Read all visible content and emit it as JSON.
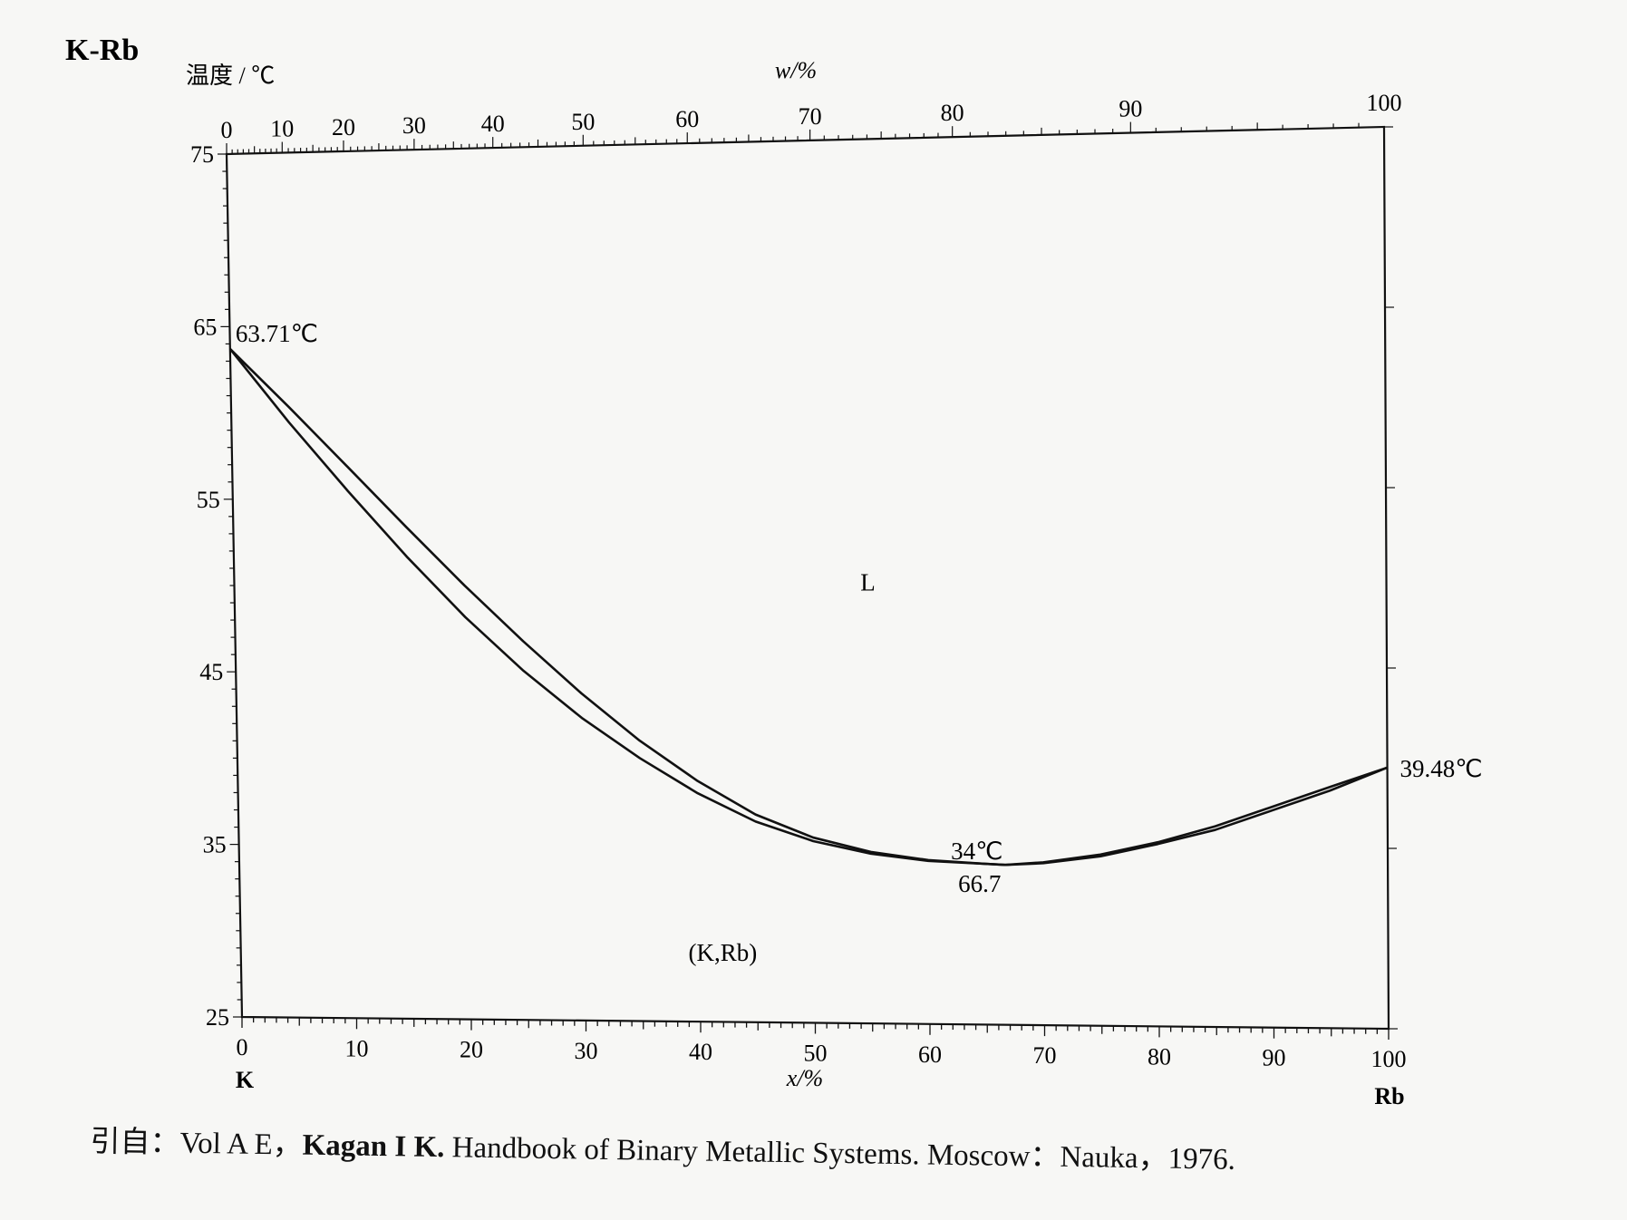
{
  "chart_data": {
    "type": "line",
    "title": "K-Rb",
    "ylabel": "温度 / ℃",
    "xlabel": "x/%",
    "x2label": "w/%",
    "ylim": [
      25,
      75
    ],
    "xlim": [
      0,
      100
    ],
    "yticks": [
      25,
      35,
      45,
      55,
      65,
      75
    ],
    "xticks": [
      0,
      10,
      20,
      30,
      40,
      50,
      60,
      70,
      80,
      90,
      100
    ],
    "x2ticks": [
      0,
      10,
      20,
      30,
      40,
      50,
      60,
      70,
      80,
      90,
      100
    ],
    "x2_positions_atomic": [
      0,
      4.8,
      10.1,
      16.2,
      23.0,
      30.8,
      39.8,
      50.4,
      62.7,
      78.1,
      100
    ],
    "component_left": "K",
    "component_right": "Rb",
    "series": [
      {
        "x": [
          0,
          5,
          10,
          15,
          20,
          25,
          30,
          35,
          40,
          45,
          50,
          55,
          60,
          65,
          66.7,
          70,
          75,
          80,
          85,
          90,
          95,
          100
        ],
        "y": [
          63.71,
          59.4,
          55.4,
          51.6,
          48.1,
          45.0,
          42.3,
          40.0,
          38.0,
          36.4,
          35.3,
          34.6,
          34.2,
          34.05,
          34.0,
          34.1,
          34.5,
          35.2,
          36.0,
          37.1,
          38.2,
          39.48
        ]
      },
      {
        "x": [
          0,
          5,
          10,
          15,
          20,
          25,
          30,
          35,
          40,
          45,
          50,
          55,
          60,
          65,
          66.7,
          70,
          75,
          80,
          85,
          90,
          95,
          100
        ],
        "y": [
          63.71,
          60.3,
          56.8,
          53.3,
          49.9,
          46.7,
          43.7,
          41.0,
          38.7,
          36.8,
          35.5,
          34.7,
          34.25,
          34.05,
          34.0,
          34.15,
          34.6,
          35.3,
          36.2,
          37.3,
          38.4,
          39.48
        ]
      }
    ],
    "annotations": [
      {
        "text": "63.71℃",
        "x": 0,
        "y": 63.71
      },
      {
        "text": "39.48℃",
        "x": 100,
        "y": 39.48
      },
      {
        "text": "34℃",
        "x": 66.7,
        "y": 34
      },
      {
        "text": "66.7",
        "x": 66.7,
        "y": 34
      },
      {
        "text": "L",
        "x": 55,
        "y": 50
      },
      {
        "text": "(K,Rb)",
        "x": 42,
        "y": 29
      }
    ],
    "grid": false
  },
  "citation": {
    "prefix": "引自：Vol A E，",
    "author_bold": "Kagan I K.",
    "rest": " Handbook of Binary Metallic Systems. Moscow：Nauka，1976."
  }
}
